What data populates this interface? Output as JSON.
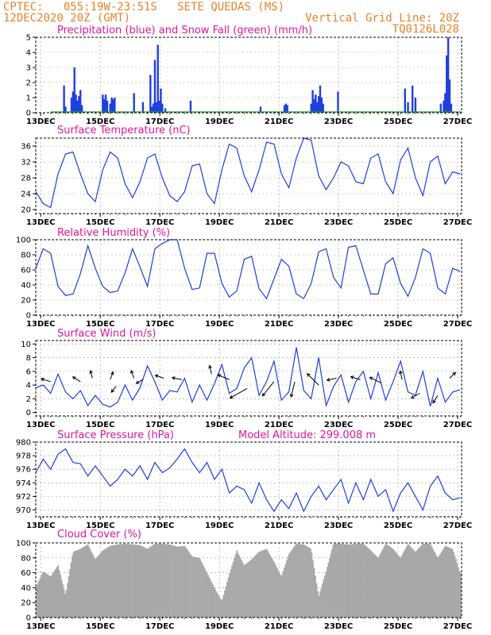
{
  "header": {
    "line1_left": "CPTEC:   055:19W-23:51S   SETE QUEDAS (MS)",
    "line2_left": "12DEC2020 20Z (GMT)",
    "line2_right": "Vertical Grid Line: 20Z",
    "line3_right": "TQ0126L028"
  },
  "colors": {
    "header": "#e8822a",
    "title": "#e0169a",
    "line": "#1f3fe0",
    "snow": "#22aa22",
    "cloud": "#a8a8a8",
    "grid": "#999999"
  },
  "x_axis": {
    "tick_labels": [
      "13DEC",
      "15DEC",
      "17DEC",
      "19DEC",
      "21DEC",
      "23DEC",
      "25DEC",
      "27DEC"
    ],
    "tick_days": [
      0.1667,
      2.1667,
      4.1667,
      6.1667,
      8.1667,
      10.1667,
      12.1667,
      14.1667
    ],
    "range_days": [
      0,
      14.3
    ],
    "note_start": "12DEC2020 20Z"
  },
  "chart_data": [
    {
      "id": "precip",
      "type": "bar",
      "title": "Precipitation (blue) and Snow Fall (green) (mm/h)",
      "ylim": [
        0,
        5
      ],
      "yticks": [
        0,
        1,
        2,
        3,
        4,
        5
      ],
      "series": [
        {
          "name": "Precipitation",
          "x": [
            0.95,
            1.0,
            1.2,
            1.25,
            1.3,
            1.35,
            1.4,
            1.45,
            1.5,
            1.55,
            2.25,
            2.3,
            2.35,
            2.4,
            2.5,
            2.55,
            2.6,
            2.65,
            3.3,
            3.6,
            3.85,
            3.9,
            3.95,
            4.0,
            4.05,
            4.1,
            4.15,
            4.2,
            4.25,
            4.35,
            5.2,
            7.55,
            8.35,
            8.4,
            8.45,
            9.25,
            9.3,
            9.35,
            9.4,
            9.45,
            9.5,
            9.55,
            9.6,
            9.65,
            10.15,
            12.4,
            12.5,
            12.65,
            12.75,
            13.6,
            13.7,
            13.75,
            13.8,
            13.85,
            13.9,
            13.95
          ],
          "values": [
            1.8,
            0.4,
            1.0,
            1.4,
            3.0,
            1.2,
            0.8,
            1.1,
            1.5,
            0.5,
            1.2,
            0.9,
            1.2,
            0.8,
            0.6,
            1.0,
            0.9,
            1.0,
            1.3,
            0.7,
            2.5,
            0.4,
            0.6,
            3.5,
            0.7,
            4.5,
            0.8,
            1.6,
            0.6,
            0.3,
            0.8,
            0.4,
            0.5,
            0.6,
            0.5,
            0.6,
            1.5,
            0.9,
            1.2,
            0.7,
            1.1,
            1.8,
            1.0,
            0.6,
            1.4,
            1.6,
            0.7,
            1.8,
            1.0,
            0.6,
            0.8,
            1.3,
            3.8,
            5.0,
            2.2,
            0.6
          ]
        },
        {
          "name": "Snow Fall",
          "x": [],
          "values": []
        }
      ]
    },
    {
      "id": "temp",
      "type": "line",
      "title": "Surface Temperature (nC)",
      "ylim": [
        19,
        38
      ],
      "yticks": [
        20,
        24,
        28,
        32,
        36
      ],
      "x": [
        0,
        0.25,
        0.5,
        0.75,
        1.0,
        1.25,
        1.5,
        1.75,
        2.0,
        2.25,
        2.5,
        2.75,
        3.0,
        3.25,
        3.5,
        3.75,
        4.0,
        4.25,
        4.5,
        4.75,
        5.0,
        5.25,
        5.5,
        5.75,
        6.0,
        6.25,
        6.5,
        6.75,
        7.0,
        7.25,
        7.5,
        7.75,
        8.0,
        8.25,
        8.5,
        8.75,
        9.0,
        9.25,
        9.5,
        9.75,
        10.0,
        10.25,
        10.5,
        10.75,
        11.0,
        11.25,
        11.5,
        11.75,
        12.0,
        12.25,
        12.5,
        12.75,
        13.0,
        13.25,
        13.5,
        13.75,
        14.0,
        14.25
      ],
      "values": [
        24.5,
        21.5,
        20.5,
        29.0,
        34.0,
        34.5,
        29.0,
        24.0,
        22.0,
        30.0,
        34.5,
        33.0,
        26.5,
        23.0,
        27.0,
        33.0,
        34.0,
        28.0,
        23.5,
        22.0,
        24.5,
        31.0,
        31.5,
        24.0,
        21.5,
        30.0,
        36.5,
        35.5,
        28.5,
        24.5,
        30.0,
        37.0,
        36.5,
        29.0,
        25.5,
        33.0,
        38.0,
        37.5,
        28.5,
        25.0,
        28.0,
        32.0,
        31.0,
        27.0,
        26.5,
        33.0,
        34.0,
        27.0,
        24.0,
        32.5,
        35.5,
        28.0,
        23.5,
        32.0,
        33.5,
        26.5,
        29.5,
        29.0
      ]
    },
    {
      "id": "rh",
      "type": "line",
      "title": "Relative Humidity (%)",
      "ylim": [
        0,
        100
      ],
      "yticks": [
        0,
        20,
        40,
        60,
        80,
        100
      ],
      "x": [
        0,
        0.25,
        0.5,
        0.75,
        1.0,
        1.25,
        1.5,
        1.75,
        2.0,
        2.25,
        2.5,
        2.75,
        3.0,
        3.25,
        3.5,
        3.75,
        4.0,
        4.25,
        4.5,
        4.75,
        5.0,
        5.25,
        5.5,
        5.75,
        6.0,
        6.25,
        6.5,
        6.75,
        7.0,
        7.25,
        7.5,
        7.75,
        8.0,
        8.25,
        8.5,
        8.75,
        9.0,
        9.25,
        9.5,
        9.75,
        10.0,
        10.25,
        10.5,
        10.75,
        11.0,
        11.25,
        11.5,
        11.75,
        12.0,
        12.25,
        12.5,
        12.75,
        13.0,
        13.25,
        13.5,
        13.75,
        14.0,
        14.25
      ],
      "values": [
        62,
        88,
        82,
        38,
        26,
        28,
        55,
        92,
        62,
        38,
        30,
        32,
        56,
        88,
        64,
        38,
        88,
        95,
        100,
        100,
        62,
        34,
        36,
        82,
        82,
        42,
        24,
        32,
        74,
        78,
        35,
        22,
        48,
        74,
        65,
        28,
        22,
        42,
        84,
        88,
        50,
        36,
        90,
        92,
        60,
        28,
        28,
        68,
        76,
        42,
        25,
        50,
        88,
        82,
        36,
        28,
        62,
        58
      ]
    },
    {
      "id": "wind",
      "type": "line",
      "title": "Surface Wind (m/s)",
      "ylim": [
        -0.5,
        10.5
      ],
      "yticks": [
        0,
        2,
        4,
        6,
        8,
        10
      ],
      "x": [
        0,
        0.25,
        0.5,
        0.75,
        1.0,
        1.25,
        1.5,
        1.75,
        2.0,
        2.25,
        2.5,
        2.75,
        3.0,
        3.25,
        3.5,
        3.75,
        4.0,
        4.25,
        4.5,
        4.75,
        5.0,
        5.25,
        5.5,
        5.75,
        6.0,
        6.25,
        6.5,
        6.75,
        7.0,
        7.25,
        7.5,
        7.75,
        8.0,
        8.25,
        8.5,
        8.75,
        9.0,
        9.25,
        9.5,
        9.75,
        10.0,
        10.25,
        10.5,
        10.75,
        11.0,
        11.25,
        11.5,
        11.75,
        12.0,
        12.25,
        12.5,
        12.75,
        13.0,
        13.25,
        13.5,
        13.75,
        14.0,
        14.25
      ],
      "values": [
        3.6,
        4.0,
        2.8,
        5.6,
        3.0,
        2.0,
        3.2,
        1.0,
        2.5,
        1.2,
        0.8,
        1.5,
        4.0,
        1.8,
        3.6,
        6.8,
        4.5,
        1.8,
        3.2,
        3.0,
        5.0,
        1.5,
        4.0,
        1.8,
        4.2,
        7.0,
        2.8,
        3.5,
        6.5,
        8.0,
        2.5,
        4.5,
        7.5,
        1.8,
        3.0,
        9.5,
        3.2,
        2.0,
        8.0,
        1.0,
        3.8,
        5.5,
        1.5,
        4.5,
        6.0,
        2.0,
        5.8,
        1.8,
        4.5,
        7.5,
        3.0,
        2.5,
        6.0,
        0.9,
        5.0,
        1.5,
        3.0,
        3.3
      ],
      "vectors": [
        {
          "x": 0.5,
          "y": 4.5,
          "u": -1,
          "v": 0.3
        },
        {
          "x": 1.5,
          "y": 4.5,
          "u": -0.8,
          "v": 0.5
        },
        {
          "x": 1.9,
          "y": 5.0,
          "u": -0.2,
          "v": 0.8
        },
        {
          "x": 2.5,
          "y": 4.8,
          "u": 0.3,
          "v": 0.8
        },
        {
          "x": 2.7,
          "y": 3.8,
          "u": -0.5,
          "v": -0.6
        },
        {
          "x": 3.3,
          "y": 5.0,
          "u": -0.3,
          "v": 0.8
        },
        {
          "x": 3.6,
          "y": 4.8,
          "u": -0.7,
          "v": -0.4
        },
        {
          "x": 4.3,
          "y": 5.0,
          "u": -0.9,
          "v": 0.3
        },
        {
          "x": 4.9,
          "y": 4.8,
          "u": -1,
          "v": 0.2
        },
        {
          "x": 5.9,
          "y": 5.6,
          "u": -0.2,
          "v": 0.9
        },
        {
          "x": 6.5,
          "y": 4.8,
          "u": -1.2,
          "v": 0.5
        },
        {
          "x": 7.1,
          "y": 3.5,
          "u": -1.8,
          "v": -1.0
        },
        {
          "x": 8.0,
          "y": 4.5,
          "u": -1.2,
          "v": -1.5
        },
        {
          "x": 8.7,
          "y": 4.5,
          "u": -0.4,
          "v": -1.6
        },
        {
          "x": 9.5,
          "y": 4.0,
          "u": -1.2,
          "v": 1.2
        },
        {
          "x": 10.1,
          "y": 5.0,
          "u": -1.0,
          "v": -0.2
        },
        {
          "x": 10.9,
          "y": 4.8,
          "u": -1.0,
          "v": 0.3
        },
        {
          "x": 11.6,
          "y": 4.3,
          "u": -1.2,
          "v": 0.6
        },
        {
          "x": 12.3,
          "y": 4.8,
          "u": -0.2,
          "v": 0.9
        },
        {
          "x": 12.9,
          "y": 2.8,
          "u": -0.9,
          "v": -0.5
        },
        {
          "x": 13.5,
          "y": 2.5,
          "u": -0.5,
          "v": -0.8
        },
        {
          "x": 13.9,
          "y": 5.0,
          "u": 0.6,
          "v": 0.6
        }
      ]
    },
    {
      "id": "pressure",
      "type": "line",
      "title": "Surface Pressure (hPa)",
      "subtitle": "Model Altitude: 299.008 m",
      "ylim": [
        969,
        980
      ],
      "yticks": [
        970,
        972,
        974,
        976,
        978,
        980
      ],
      "x": [
        0,
        0.25,
        0.5,
        0.75,
        1.0,
        1.25,
        1.5,
        1.75,
        2.0,
        2.25,
        2.5,
        2.75,
        3.0,
        3.25,
        3.5,
        3.75,
        4.0,
        4.25,
        4.5,
        4.75,
        5.0,
        5.25,
        5.5,
        5.75,
        6.0,
        6.25,
        6.5,
        6.75,
        7.0,
        7.25,
        7.5,
        7.75,
        8.0,
        8.25,
        8.5,
        8.75,
        9.0,
        9.25,
        9.5,
        9.75,
        10.0,
        10.25,
        10.5,
        10.75,
        11.0,
        11.25,
        11.5,
        11.75,
        12.0,
        12.25,
        12.5,
        12.75,
        13.0,
        13.25,
        13.5,
        13.75,
        14.0,
        14.25
      ],
      "values": [
        975.5,
        977.5,
        976.0,
        978.2,
        979.0,
        977.0,
        976.8,
        975.0,
        976.5,
        975.0,
        973.5,
        974.5,
        976.0,
        975.0,
        976.5,
        974.5,
        977.0,
        975.5,
        976.2,
        977.5,
        979.0,
        977.0,
        975.5,
        977.0,
        974.5,
        976.0,
        972.5,
        973.5,
        973.0,
        971.0,
        974.0,
        971.5,
        969.8,
        971.5,
        970.2,
        972.5,
        969.8,
        972.0,
        973.5,
        971.5,
        973.0,
        974.5,
        971.0,
        974.0,
        971.5,
        974.5,
        972.0,
        973.0,
        969.8,
        972.5,
        974.0,
        972.0,
        970.0,
        973.5,
        975.0,
        972.5,
        971.5,
        971.8
      ]
    },
    {
      "id": "cloud",
      "type": "area",
      "title": "Cloud Cover (%)",
      "ylim": [
        0,
        100
      ],
      "yticks": [
        0,
        20,
        40,
        60,
        80,
        100
      ],
      "x": [
        0,
        0.25,
        0.5,
        0.75,
        1.0,
        1.25,
        1.5,
        1.75,
        2.0,
        2.25,
        2.5,
        2.75,
        3.0,
        3.25,
        3.5,
        3.75,
        4.0,
        4.25,
        4.5,
        4.75,
        5.0,
        5.25,
        5.5,
        5.75,
        6.0,
        6.25,
        6.5,
        6.75,
        7.0,
        7.25,
        7.5,
        7.75,
        8.0,
        8.25,
        8.5,
        8.75,
        9.0,
        9.25,
        9.5,
        9.75,
        10.0,
        10.25,
        10.5,
        10.75,
        11.0,
        11.25,
        11.5,
        11.75,
        12.0,
        12.25,
        12.5,
        12.75,
        13.0,
        13.25,
        13.5,
        13.75,
        14.0,
        14.25
      ],
      "values": [
        40,
        62,
        55,
        70,
        30,
        88,
        92,
        98,
        78,
        90,
        96,
        98,
        99,
        98,
        97,
        92,
        99,
        99,
        98,
        95,
        96,
        82,
        80,
        60,
        40,
        22,
        58,
        90,
        70,
        78,
        88,
        92,
        75,
        55,
        85,
        99,
        98,
        92,
        28,
        62,
        99,
        99,
        98,
        99,
        99,
        90,
        80,
        99,
        92,
        80,
        99,
        88,
        99,
        99,
        80,
        96,
        92,
        60
      ]
    }
  ]
}
